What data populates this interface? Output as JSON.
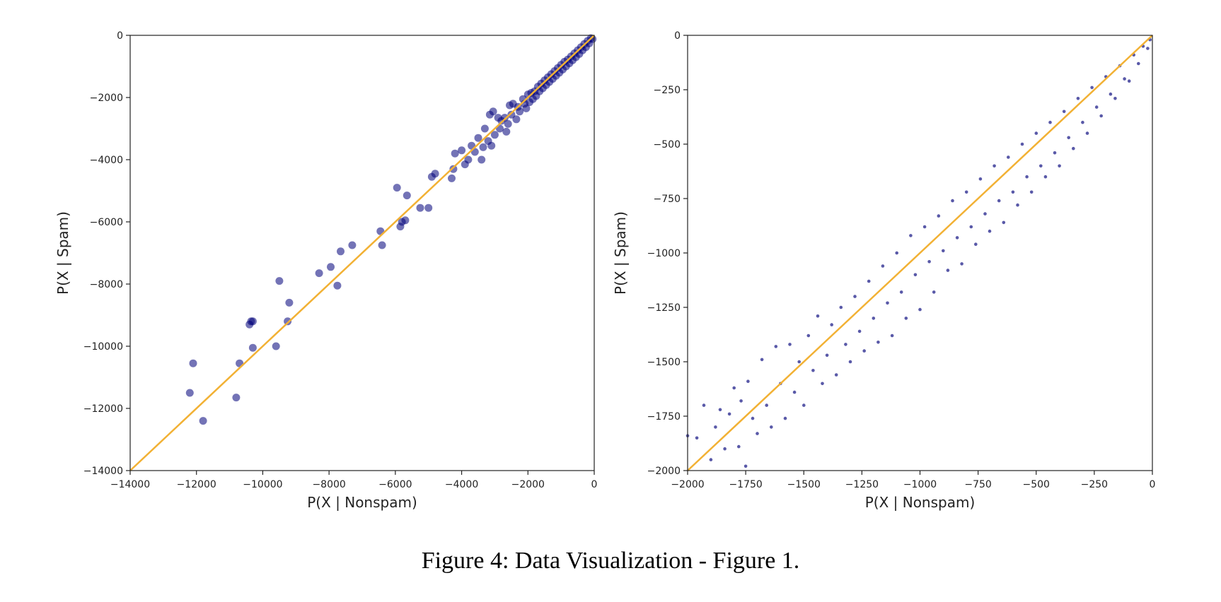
{
  "caption": "Figure 4: Data Visualization - Figure 1.",
  "colors": {
    "points": "#00007a",
    "diagonal": "#f2b134",
    "axes": "#222222"
  },
  "chart_data": [
    {
      "type": "scatter",
      "title": "",
      "xlabel": "P(X | Nonspam)",
      "ylabel": "P(X | Spam)",
      "xlim": [
        -14000,
        0
      ],
      "ylim": [
        -14000,
        0
      ],
      "xticks": [
        -14000,
        -12000,
        -10000,
        -8000,
        -6000,
        -4000,
        -2000,
        0
      ],
      "yticks": [
        -14000,
        -12000,
        -10000,
        -8000,
        -6000,
        -4000,
        -2000,
        0
      ],
      "xtick_labels": [
        "−14000",
        "−12000",
        "−10000",
        "−8000",
        "−6000",
        "−4000",
        "−2000",
        "0"
      ],
      "ytick_labels": [
        "−14000",
        "−12000",
        "−10000",
        "−8000",
        "−6000",
        "−4000",
        "−2000",
        "0"
      ],
      "grid": false,
      "point_style": "large translucent",
      "reference_line": [
        [
          -14000,
          -14000
        ],
        [
          0,
          0
        ]
      ],
      "points": [
        [
          -12200,
          -11500
        ],
        [
          -12100,
          -10550
        ],
        [
          -11800,
          -12400
        ],
        [
          -10800,
          -11650
        ],
        [
          -10700,
          -10550
        ],
        [
          -10400,
          -9300
        ],
        [
          -10350,
          -9200
        ],
        [
          -10300,
          -9200
        ],
        [
          -10300,
          -10050
        ],
        [
          -9600,
          -10000
        ],
        [
          -9500,
          -7900
        ],
        [
          -9250,
          -9200
        ],
        [
          -9200,
          -8600
        ],
        [
          -8300,
          -7650
        ],
        [
          -7950,
          -7450
        ],
        [
          -7750,
          -8050
        ],
        [
          -7650,
          -6950
        ],
        [
          -7300,
          -6750
        ],
        [
          -6450,
          -6300
        ],
        [
          -6400,
          -6750
        ],
        [
          -5950,
          -4900
        ],
        [
          -5850,
          -6150
        ],
        [
          -5800,
          -6000
        ],
        [
          -5700,
          -5950
        ],
        [
          -5650,
          -5150
        ],
        [
          -5250,
          -5550
        ],
        [
          -5000,
          -5550
        ],
        [
          -4900,
          -4550
        ],
        [
          -4800,
          -4450
        ],
        [
          -4300,
          -4600
        ],
        [
          -4250,
          -4300
        ],
        [
          -4200,
          -3800
        ],
        [
          -4000,
          -3700
        ],
        [
          -3900,
          -4150
        ],
        [
          -3800,
          -4000
        ],
        [
          -3700,
          -3550
        ],
        [
          -3600,
          -3750
        ],
        [
          -3500,
          -3300
        ],
        [
          -3400,
          -4000
        ],
        [
          -3350,
          -3600
        ],
        [
          -3300,
          -3000
        ],
        [
          -3200,
          -3400
        ],
        [
          -3150,
          -2550
        ],
        [
          -3100,
          -3550
        ],
        [
          -3050,
          -2450
        ],
        [
          -3000,
          -3200
        ],
        [
          -2900,
          -2650
        ],
        [
          -2850,
          -3000
        ],
        [
          -2800,
          -2750
        ],
        [
          -2700,
          -2650
        ],
        [
          -2650,
          -3100
        ],
        [
          -2600,
          -2850
        ],
        [
          -2550,
          -2250
        ],
        [
          -2500,
          -2550
        ],
        [
          -2450,
          -2200
        ],
        [
          -2350,
          -2700
        ],
        [
          -2300,
          -2300
        ],
        [
          -2250,
          -2450
        ],
        [
          -2150,
          -2050
        ],
        [
          -2100,
          -2200
        ],
        [
          -2050,
          -2350
        ],
        [
          -2000,
          -1900
        ],
        [
          -1950,
          -2150
        ],
        [
          -1900,
          -1850
        ],
        [
          -1850,
          -2050
        ],
        [
          -1800,
          -1800
        ],
        [
          -1750,
          -1950
        ],
        [
          -1700,
          -1650
        ],
        [
          -1650,
          -1800
        ],
        [
          -1600,
          -1550
        ],
        [
          -1550,
          -1700
        ],
        [
          -1500,
          -1450
        ],
        [
          -1450,
          -1600
        ],
        [
          -1400,
          -1350
        ],
        [
          -1350,
          -1500
        ],
        [
          -1300,
          -1250
        ],
        [
          -1250,
          -1400
        ],
        [
          -1200,
          -1150
        ],
        [
          -1150,
          -1300
        ],
        [
          -1100,
          -1050
        ],
        [
          -1050,
          -1200
        ],
        [
          -1000,
          -950
        ],
        [
          -950,
          -1100
        ],
        [
          -900,
          -850
        ],
        [
          -850,
          -1000
        ],
        [
          -800,
          -780
        ],
        [
          -750,
          -900
        ],
        [
          -700,
          -680
        ],
        [
          -650,
          -800
        ],
        [
          -600,
          -580
        ],
        [
          -550,
          -700
        ],
        [
          -500,
          -480
        ],
        [
          -450,
          -600
        ],
        [
          -400,
          -380
        ],
        [
          -350,
          -480
        ],
        [
          -300,
          -280
        ],
        [
          -250,
          -380
        ],
        [
          -200,
          -180
        ],
        [
          -150,
          -260
        ],
        [
          -100,
          -90
        ],
        [
          -50,
          -120
        ]
      ]
    },
    {
      "type": "scatter",
      "title": "",
      "xlabel": "P(X | Nonspam)",
      "ylabel": "P(X | Spam)",
      "xlim": [
        -2000,
        0
      ],
      "ylim": [
        -2000,
        0
      ],
      "xticks": [
        -2000,
        -1750,
        -1500,
        -1250,
        -1000,
        -750,
        -500,
        -250,
        0
      ],
      "yticks": [
        -2000,
        -1750,
        -1500,
        -1250,
        -1000,
        -750,
        -500,
        -250,
        0
      ],
      "xtick_labels": [
        "−2000",
        "−1750",
        "−1500",
        "−1250",
        "−1000",
        "−750",
        "−500",
        "−250",
        "0"
      ],
      "ytick_labels": [
        "−2000",
        "−1750",
        "−1500",
        "−1250",
        "−1000",
        "−750",
        "−500",
        "−250",
        "0"
      ],
      "grid": false,
      "point_style": "small translucent",
      "reference_line": [
        [
          -2000,
          -2000
        ],
        [
          0,
          0
        ]
      ],
      "points": [
        [
          -2000,
          -1840
        ],
        [
          -1960,
          -1850
        ],
        [
          -1930,
          -1700
        ],
        [
          -1900,
          -1950
        ],
        [
          -1880,
          -1800
        ],
        [
          -1860,
          -1720
        ],
        [
          -1840,
          -1900
        ],
        [
          -1820,
          -1740
        ],
        [
          -1800,
          -1620
        ],
        [
          -1780,
          -1890
        ],
        [
          -1770,
          -1680
        ],
        [
          -1750,
          -1980
        ],
        [
          -1740,
          -1590
        ],
        [
          -1720,
          -1760
        ],
        [
          -1700,
          -1830
        ],
        [
          -1680,
          -1490
        ],
        [
          -1660,
          -1700
        ],
        [
          -1640,
          -1800
        ],
        [
          -1620,
          -1430
        ],
        [
          -1600,
          -1600
        ],
        [
          -1580,
          -1760
        ],
        [
          -1560,
          -1420
        ],
        [
          -1540,
          -1640
        ],
        [
          -1520,
          -1500
        ],
        [
          -1500,
          -1700
        ],
        [
          -1480,
          -1380
        ],
        [
          -1460,
          -1540
        ],
        [
          -1440,
          -1290
        ],
        [
          -1420,
          -1600
        ],
        [
          -1400,
          -1470
        ],
        [
          -1380,
          -1330
        ],
        [
          -1360,
          -1560
        ],
        [
          -1340,
          -1250
        ],
        [
          -1320,
          -1420
        ],
        [
          -1300,
          -1500
        ],
        [
          -1280,
          -1200
        ],
        [
          -1260,
          -1360
        ],
        [
          -1240,
          -1450
        ],
        [
          -1220,
          -1130
        ],
        [
          -1200,
          -1300
        ],
        [
          -1180,
          -1410
        ],
        [
          -1160,
          -1060
        ],
        [
          -1140,
          -1230
        ],
        [
          -1120,
          -1380
        ],
        [
          -1100,
          -1000
        ],
        [
          -1080,
          -1180
        ],
        [
          -1060,
          -1300
        ],
        [
          -1040,
          -920
        ],
        [
          -1020,
          -1100
        ],
        [
          -1000,
          -1260
        ],
        [
          -980,
          -880
        ],
        [
          -960,
          -1040
        ],
        [
          -940,
          -1180
        ],
        [
          -920,
          -830
        ],
        [
          -900,
          -990
        ],
        [
          -880,
          -1080
        ],
        [
          -860,
          -760
        ],
        [
          -840,
          -930
        ],
        [
          -820,
          -1050
        ],
        [
          -800,
          -720
        ],
        [
          -780,
          -880
        ],
        [
          -760,
          -960
        ],
        [
          -740,
          -660
        ],
        [
          -720,
          -820
        ],
        [
          -700,
          -900
        ],
        [
          -680,
          -600
        ],
        [
          -660,
          -760
        ],
        [
          -640,
          -860
        ],
        [
          -620,
          -560
        ],
        [
          -600,
          -720
        ],
        [
          -580,
          -780
        ],
        [
          -560,
          -500
        ],
        [
          -540,
          -650
        ],
        [
          -520,
          -720
        ],
        [
          -500,
          -450
        ],
        [
          -480,
          -600
        ],
        [
          -460,
          -650
        ],
        [
          -440,
          -400
        ],
        [
          -420,
          -540
        ],
        [
          -400,
          -600
        ],
        [
          -380,
          -350
        ],
        [
          -360,
          -470
        ],
        [
          -340,
          -520
        ],
        [
          -320,
          -290
        ],
        [
          -300,
          -400
        ],
        [
          -280,
          -450
        ],
        [
          -260,
          -240
        ],
        [
          -240,
          -330
        ],
        [
          -220,
          -370
        ],
        [
          -200,
          -190
        ],
        [
          -180,
          -270
        ],
        [
          -160,
          -290
        ],
        [
          -140,
          -140
        ],
        [
          -120,
          -200
        ],
        [
          -100,
          -210
        ],
        [
          -80,
          -90
        ],
        [
          -60,
          -130
        ],
        [
          -40,
          -50
        ],
        [
          -20,
          -60
        ],
        [
          -10,
          -20
        ]
      ]
    }
  ]
}
